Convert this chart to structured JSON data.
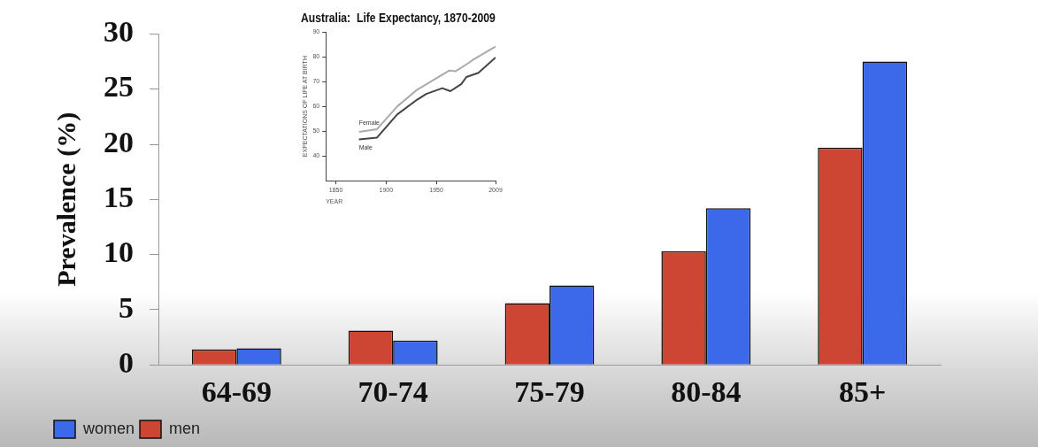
{
  "chart_data": [
    {
      "type": "bar",
      "ylabel": "Prevalence (%)",
      "categories": [
        "64-69",
        "70-74",
        "75-79",
        "80-84",
        "85+"
      ],
      "series": [
        {
          "name": "men",
          "color": "#cc4633",
          "values": [
            1.4,
            3.1,
            5.6,
            10.3,
            19.7
          ]
        },
        {
          "name": "women",
          "color": "#3c68ea",
          "values": [
            1.5,
            2.2,
            7.2,
            14.2,
            27.5
          ]
        }
      ],
      "ylim": [
        0,
        30
      ],
      "yticks": [
        0,
        5,
        10,
        15,
        20,
        25,
        30
      ],
      "grid": false,
      "legend": "bottom left"
    },
    {
      "type": "line",
      "title": "Australia:  Life Expectancy, 1870-2009",
      "xlabel": "YEAR",
      "ylabel": "EXPECTATIONS OF LIFE AT BIRTH",
      "series": [
        {
          "name": "Female",
          "color": "#aaaaaa",
          "x": [
            1873,
            1891,
            1911,
            1931,
            1952,
            1963,
            1969,
            1980,
            1986,
            2009
          ],
          "values": [
            49.7,
            50.8,
            59.9,
            66.7,
            71.8,
            74.4,
            74.1,
            76.9,
            78.6,
            84.1
          ]
        },
        {
          "name": "Male",
          "color": "#444444",
          "x": [
            1873,
            1891,
            1911,
            1931,
            1940,
            1956,
            1964,
            1975,
            1980,
            1992,
            2009
          ],
          "values": [
            46.7,
            47.4,
            56.7,
            62.7,
            65,
            67.3,
            66.1,
            69,
            71.8,
            73.5,
            79.7
          ]
        }
      ],
      "xlim": [
        1840,
        2009
      ],
      "xticks": [
        1850,
        1900,
        1950,
        2009
      ],
      "ylim": [
        30,
        90
      ],
      "yticks": [
        40,
        50,
        60,
        70,
        80,
        90
      ],
      "grid": false,
      "legend": false
    }
  ]
}
